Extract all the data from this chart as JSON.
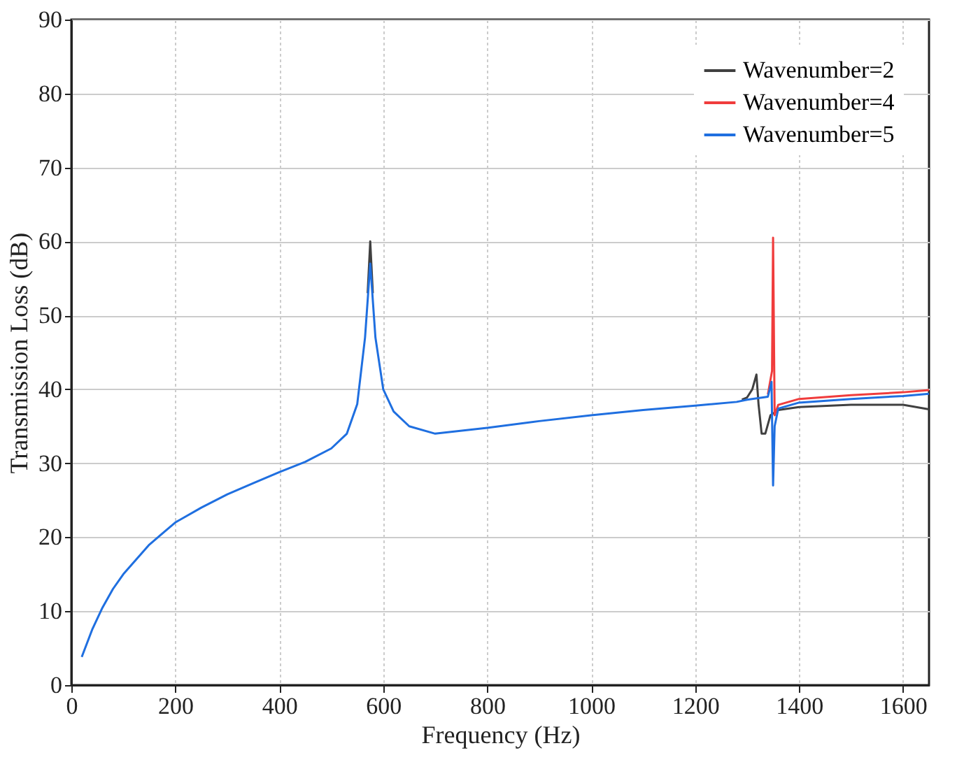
{
  "chart_data": {
    "type": "line",
    "xlabel": "Frequency (Hz)",
    "ylabel": "Transmission Loss (dB)",
    "xlim": [
      0,
      1650
    ],
    "xticks": [
      0,
      200,
      400,
      600,
      800,
      1000,
      1200,
      1400,
      1600
    ],
    "ylim": [
      0,
      90
    ],
    "yticks": [
      0,
      10,
      20,
      30,
      40,
      50,
      60,
      70,
      80,
      90
    ],
    "grid": true,
    "legend": "top right",
    "line_style": "solid",
    "marker": "none",
    "series": [
      {
        "name": "Wavenumber=2",
        "color": "#404040",
        "x": [
          570,
          575,
          580,
          600,
          1290,
          1300,
          1310,
          1318,
          1322,
          1328,
          1335,
          1345,
          1360,
          1400,
          1500,
          1600,
          1650
        ],
        "values": [
          53,
          60,
          53,
          null,
          38.6,
          38.9,
          40,
          42,
          38,
          34,
          34,
          36.5,
          37.2,
          37.6,
          37.9,
          37.9,
          37.3
        ]
      },
      {
        "name": "Wavenumber=4",
        "color": "#f03c3c",
        "x": [
          1340,
          1348,
          1350,
          1353,
          1360,
          1400,
          1500,
          1600,
          1650
        ],
        "values": [
          39.3,
          42.5,
          60.5,
          36.5,
          37.9,
          38.7,
          39.2,
          39.6,
          39.9
        ]
      },
      {
        "name": "Wavenumber=5",
        "color": "#1f6fe0",
        "x": [
          20,
          40,
          60,
          80,
          100,
          150,
          200,
          250,
          300,
          350,
          400,
          450,
          500,
          530,
          550,
          565,
          575,
          585,
          600,
          620,
          650,
          700,
          800,
          900,
          1000,
          1100,
          1200,
          1280,
          1300,
          1340,
          1347,
          1350,
          1353,
          1360,
          1400,
          1500,
          1600,
          1650
        ],
        "values": [
          3.8,
          7.5,
          10.5,
          13,
          15,
          19,
          22,
          24,
          25.8,
          27.3,
          28.8,
          30.2,
          32,
          34,
          38,
          47,
          57,
          47,
          40,
          37,
          35,
          34,
          34.8,
          35.7,
          36.5,
          37.2,
          37.8,
          38.3,
          38.6,
          39,
          41,
          27,
          35,
          37.4,
          38.2,
          38.7,
          39.1,
          39.4
        ]
      }
    ]
  }
}
